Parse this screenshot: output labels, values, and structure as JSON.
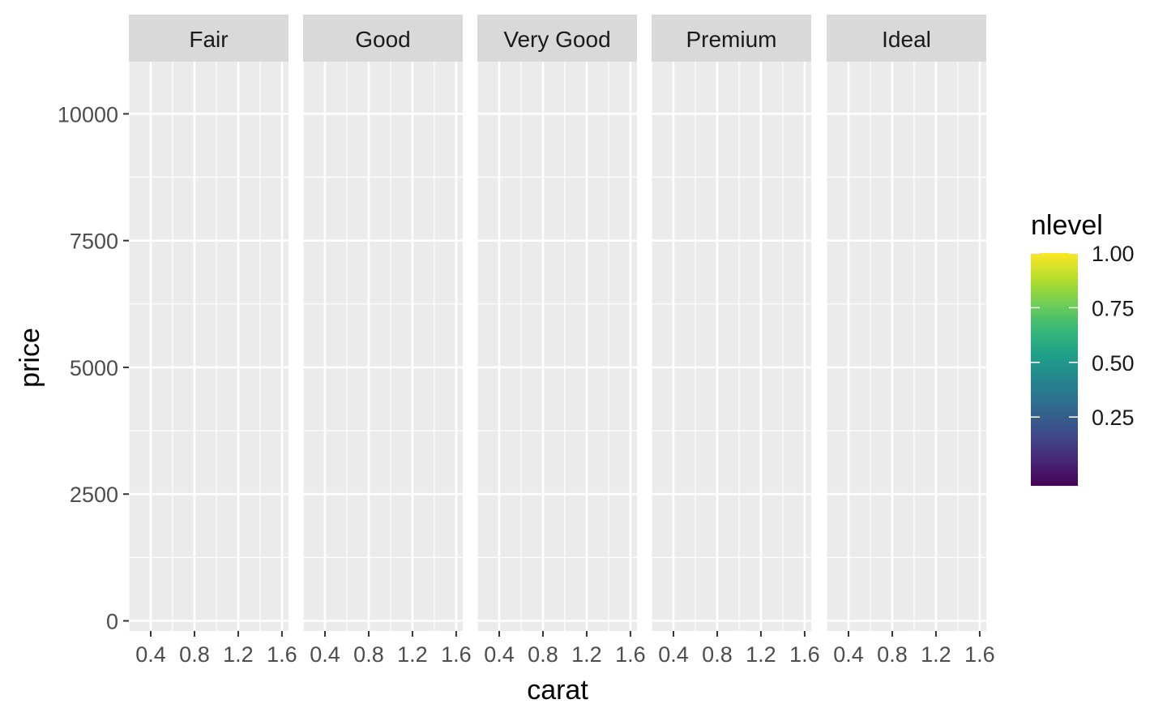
{
  "chart_data": {
    "type": "scatter",
    "facet_by": "cut",
    "facets": [
      "Fair",
      "Good",
      "Very Good",
      "Premium",
      "Ideal"
    ],
    "xlabel": "carat",
    "ylabel": "price",
    "xlim": [
      0.2,
      1.66
    ],
    "ylim": [
      -200,
      11030
    ],
    "x_ticks": [
      0.4,
      0.8,
      1.2,
      1.6
    ],
    "x_tick_labels": [
      "0.4",
      "0.8",
      "1.2",
      "1.6"
    ],
    "x_minor_ticks": [
      0.2,
      0.6,
      1.0,
      1.4
    ],
    "y_ticks": [
      0,
      2500,
      5000,
      7500,
      10000
    ],
    "y_tick_labels": [
      "0",
      "2500",
      "5000",
      "7500",
      "10000"
    ],
    "y_minor_ticks": [
      1250,
      3750,
      6250,
      8750
    ],
    "grid": true,
    "series": [],
    "legend": {
      "title": "nlevel",
      "type": "colorbar",
      "placement": "right",
      "range": [
        0.0,
        1.0
      ],
      "breaks": [
        0.25,
        0.5,
        0.75,
        1.0
      ],
      "labels": [
        "0.25",
        "0.50",
        "0.75",
        "1.00"
      ],
      "colors": [
        "#440154",
        "#482878",
        "#3E4A89",
        "#31688E",
        "#26828E",
        "#1F9E89",
        "#35B779",
        "#6DCD59",
        "#B4DE2C",
        "#FDE725"
      ]
    },
    "colors": {
      "panel_bg": "#EBEBEB",
      "strip_bg": "#D9D9D9",
      "grid": "#FFFFFF",
      "tick_text": "#4D4D4D",
      "text": "#1A1A1A"
    }
  }
}
